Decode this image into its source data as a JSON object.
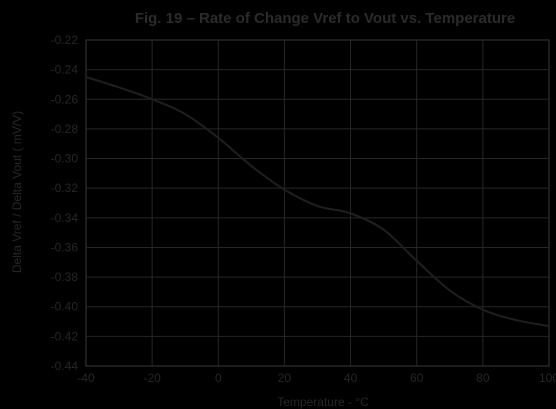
{
  "chart_data": {
    "type": "line",
    "title": "Fig. 19 – Rate of Change Vref to Vout vs. Temperature",
    "xlabel": "Temperature - °C",
    "ylabel": "Delta Vref / Delta Vout ( mV/V)",
    "xlim": [
      -40,
      100
    ],
    "ylim": [
      -0.44,
      -0.22
    ],
    "x_ticks": [
      -40,
      -20,
      0,
      20,
      40,
      60,
      80,
      100
    ],
    "x_tick_labels": [
      "-40",
      "-20",
      "0",
      "20",
      "40",
      "60",
      "80",
      "100"
    ],
    "y_ticks": [
      -0.22,
      -0.24,
      -0.26,
      -0.28,
      -0.3,
      -0.32,
      -0.34,
      -0.36,
      -0.38,
      -0.4,
      -0.42,
      -0.44
    ],
    "y_tick_labels": [
      "-0.22",
      "-0.24",
      "-0.26",
      "-0.28",
      "-0.30",
      "-0.32",
      "-0.34",
      "-0.36",
      "-0.38",
      "-0.40",
      "-0.42",
      "-0.44"
    ],
    "grid": true,
    "series": [
      {
        "x": [
          -40,
          -30,
          -20,
          -10,
          0,
          10,
          20,
          30,
          40,
          50,
          60,
          70,
          80,
          90,
          100
        ],
        "values": [
          -0.245,
          -0.252,
          -0.26,
          -0.27,
          -0.286,
          -0.305,
          -0.321,
          -0.332,
          -0.337,
          -0.348,
          -0.369,
          -0.389,
          -0.402,
          -0.409,
          -0.413
        ]
      }
    ],
    "colors": {
      "background": "#000000",
      "grid": "#262626",
      "line": "#1f1f1f",
      "text": "#262626",
      "title": "#2b2b2b"
    }
  }
}
